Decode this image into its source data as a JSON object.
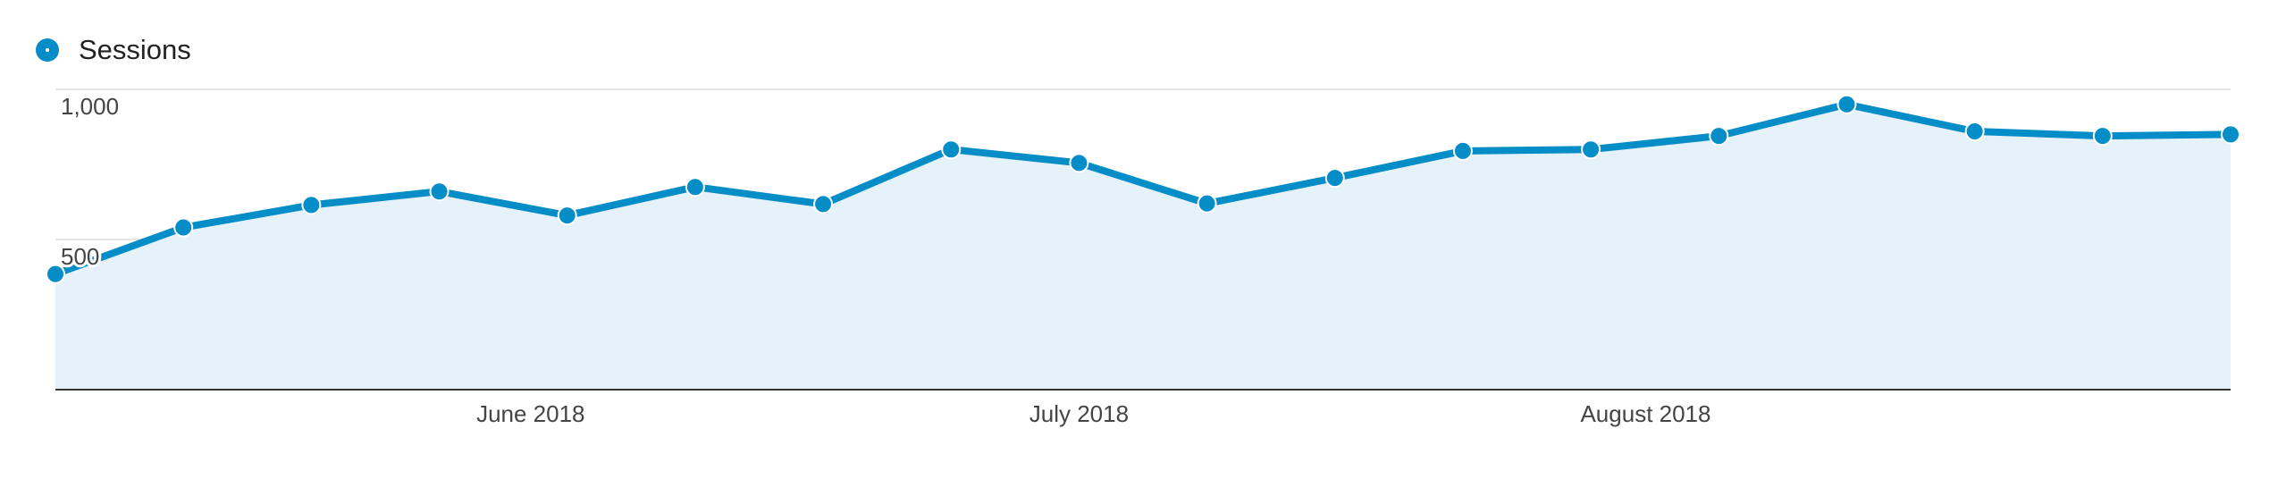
{
  "chart_data": {
    "type": "area",
    "x": [
      "2018-05-06",
      "2018-05-13",
      "2018-05-20",
      "2018-05-27",
      "2018-06-03",
      "2018-06-10",
      "2018-06-17",
      "2018-06-24",
      "2018-07-01",
      "2018-07-08",
      "2018-07-15",
      "2018-07-22",
      "2018-07-29",
      "2018-08-05",
      "2018-08-12",
      "2018-08-19",
      "2018-08-26",
      "2018-09-02"
    ],
    "series": [
      {
        "name": "Sessions",
        "values": [
          385,
          540,
          615,
          660,
          580,
          675,
          618,
          800,
          755,
          620,
          705,
          795,
          800,
          845,
          950,
          860,
          845,
          850
        ]
      }
    ],
    "ylim": [
      0,
      1000
    ],
    "yticks": [
      {
        "value": 1000,
        "label": "1,000"
      },
      {
        "value": 500,
        "label": "500"
      }
    ],
    "xticks": [
      {
        "date": "2018-06-01",
        "label": "June 2018"
      },
      {
        "date": "2018-07-01",
        "label": "July 2018"
      },
      {
        "date": "2018-08-01",
        "label": "August 2018"
      }
    ],
    "grid": true,
    "legend": "top-left",
    "colors": {
      "line": "#058dc7",
      "fill": "#e6f2f9",
      "grid": "#e6e6e6",
      "axis": "#333333"
    }
  }
}
